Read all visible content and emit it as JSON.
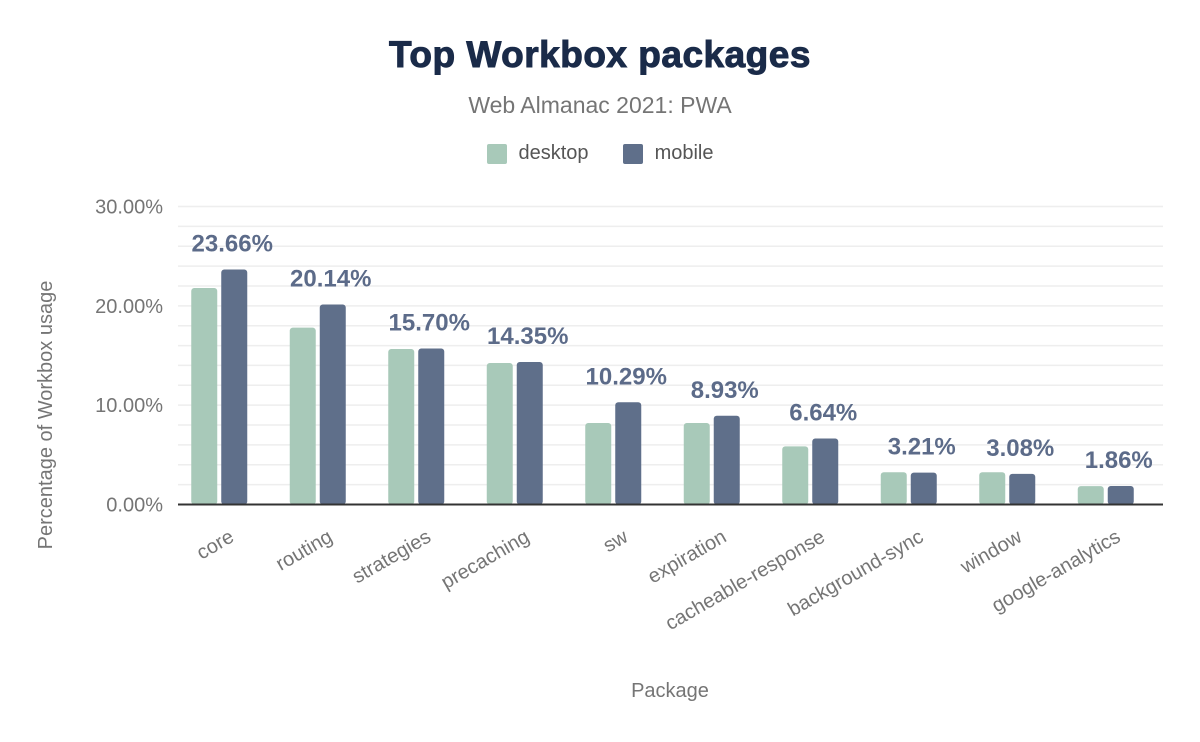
{
  "chart_data": {
    "type": "bar",
    "title": "Top Workbox packages",
    "subtitle": "Web Almanac 2021: PWA",
    "xlabel": "Package",
    "ylabel": "Percentage of Workbox usage",
    "ylim": [
      0,
      30
    ],
    "yticks": [
      "0.00%",
      "10.00%",
      "20.00%",
      "30.00%"
    ],
    "grid": true,
    "legend_placement": "top-center",
    "categories": [
      "core",
      "routing",
      "strategies",
      "precaching",
      "sw",
      "expiration",
      "cacheable-response",
      "background-sync",
      "window",
      "google-analytics"
    ],
    "series": [
      {
        "name": "desktop",
        "color": "#a8c9b9",
        "values": [
          21.8,
          17.8,
          15.65,
          14.25,
          8.2,
          8.2,
          5.85,
          3.25,
          3.25,
          1.85
        ]
      },
      {
        "name": "mobile",
        "color": "#5f6f8a",
        "values": [
          23.66,
          20.14,
          15.7,
          14.35,
          10.29,
          8.93,
          6.64,
          3.21,
          3.08,
          1.86
        ]
      }
    ],
    "data_labels": [
      "23.66%",
      "20.14%",
      "15.70%",
      "14.35%",
      "10.29%",
      "8.93%",
      "6.64%",
      "3.21%",
      "3.08%",
      "1.86%"
    ],
    "label_color": "#5c6b89"
  }
}
